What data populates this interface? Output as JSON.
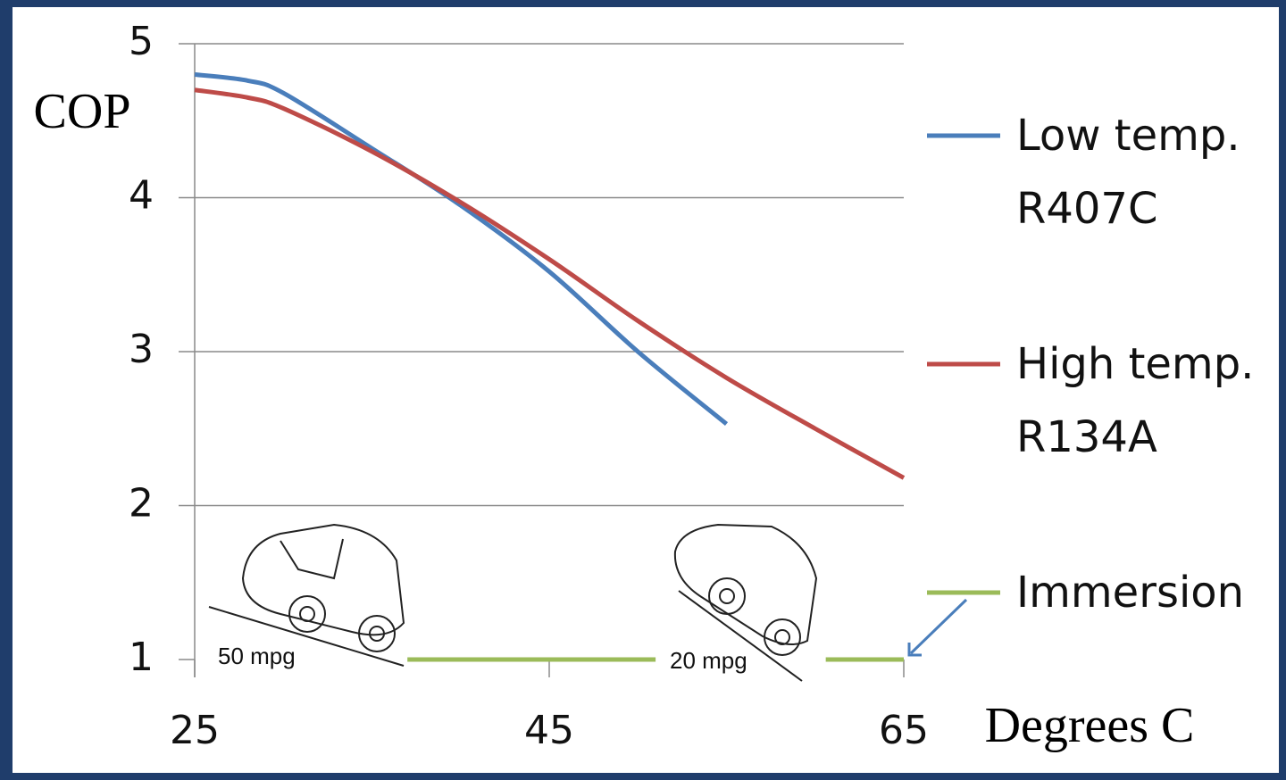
{
  "chart_data": {
    "type": "line",
    "y_label": "COP",
    "x_label": "Degrees C",
    "xlim": [
      25,
      65
    ],
    "xticks": [
      25,
      45,
      65
    ],
    "ylim": [
      1,
      5
    ],
    "yticks": [
      1,
      2,
      3,
      4,
      5
    ],
    "grid": true,
    "series": [
      {
        "name": "Low temp. R407C",
        "color": "#4a7ebb",
        "x": [
          25,
          28,
          30,
          35,
          40,
          45,
          50,
          55
        ],
        "values": [
          4.8,
          4.76,
          4.68,
          4.32,
          3.95,
          3.52,
          3.0,
          2.53
        ]
      },
      {
        "name": "High temp. R134A",
        "color": "#be4b48",
        "x": [
          25,
          28,
          30,
          35,
          40,
          45,
          50,
          55,
          60,
          65
        ],
        "values": [
          4.7,
          4.65,
          4.58,
          4.3,
          3.97,
          3.6,
          3.2,
          2.83,
          2.5,
          2.18
        ]
      },
      {
        "name": "Immersion",
        "color": "#9bbb59",
        "x": [
          37,
          51,
          56,
          60.6,
          65
        ],
        "values": [
          1,
          1,
          null,
          1,
          1
        ]
      }
    ],
    "annotations": [
      "50 mpg",
      "20 mpg"
    ]
  }
}
